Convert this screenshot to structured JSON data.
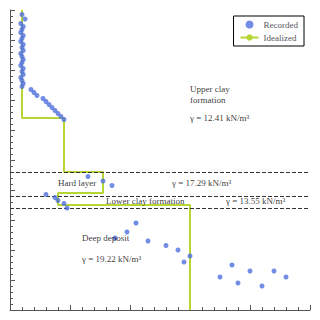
{
  "chart_data": {
    "type": "scatter",
    "xlim": [
      0,
      500
    ],
    "ylim": [
      100,
      0
    ],
    "xticks": [
      0,
      100,
      200,
      300,
      400,
      500
    ],
    "yticks": [
      0,
      10,
      20,
      30,
      40,
      50,
      60,
      70,
      80,
      90,
      100
    ],
    "tick_labels": false,
    "grid": false,
    "legend": "upper right",
    "series": [
      {
        "name": "Recorded",
        "type": "scatter",
        "marker": "circle",
        "values": [
          [
            20,
            1.5
          ],
          [
            25,
            3
          ],
          [
            18,
            4.5
          ],
          [
            22,
            5.5
          ],
          [
            20,
            6.5
          ],
          [
            18,
            7.5
          ],
          [
            22,
            8.5
          ],
          [
            20,
            9.5
          ],
          [
            18,
            10.5
          ],
          [
            22,
            11.5
          ],
          [
            20,
            12.5
          ],
          [
            22,
            13.5
          ],
          [
            18,
            14.5
          ],
          [
            20,
            15.5
          ],
          [
            22,
            16.5
          ],
          [
            20,
            17.5
          ],
          [
            18,
            18.5
          ],
          [
            22,
            19.5
          ],
          [
            20,
            20.5
          ],
          [
            22,
            21.5
          ],
          [
            18,
            22.5
          ],
          [
            20,
            23.5
          ],
          [
            22,
            24.5
          ],
          [
            20,
            25.5
          ],
          [
            35,
            26.5
          ],
          [
            40,
            27.5
          ],
          [
            45,
            28.5
          ],
          [
            55,
            29.5
          ],
          [
            60,
            30.5
          ],
          [
            65,
            31.5
          ],
          [
            70,
            32.5
          ],
          [
            75,
            33.5
          ],
          [
            80,
            34.5
          ],
          [
            85,
            35.5
          ],
          [
            90,
            36.5
          ],
          [
            130,
            55.5
          ],
          [
            155,
            57
          ],
          [
            170,
            58.5
          ],
          [
            60,
            61.5
          ],
          [
            75,
            62.5
          ],
          [
            80,
            63.5
          ],
          [
            90,
            64.5
          ],
          [
            95,
            66
          ],
          [
            210,
            71
          ],
          [
            195,
            74
          ],
          [
            175,
            76
          ],
          [
            230,
            77
          ],
          [
            260,
            78.5
          ],
          [
            280,
            80
          ],
          [
            300,
            82
          ],
          [
            290,
            84
          ],
          [
            370,
            85
          ],
          [
            400,
            87
          ],
          [
            350,
            89
          ],
          [
            380,
            91
          ],
          [
            440,
            87
          ],
          [
            460,
            89
          ],
          [
            420,
            92
          ]
        ]
      },
      {
        "name": "Idealized",
        "type": "line",
        "marker": "none",
        "values": [
          [
            20,
            0
          ],
          [
            20,
            36
          ],
          [
            90,
            36
          ],
          [
            90,
            54
          ],
          [
            155,
            54
          ],
          [
            155,
            61
          ],
          [
            80,
            61
          ],
          [
            80,
            65
          ],
          [
            300,
            65
          ],
          [
            300,
            100
          ]
        ]
      }
    ],
    "hlines": {
      "values": [
        54,
        62,
        66
      ],
      "line_style": "dashed"
    },
    "annotations": [
      {
        "text": "Upper clay\nformation",
        "x": 300,
        "y": 28
      },
      {
        "text": "γ = 12.41 kN/m³",
        "x": 300,
        "y": 36
      },
      {
        "text": "Hard layer",
        "x": 80,
        "y": 57.5
      },
      {
        "text": "γ = 17.29 kN/m³",
        "x": 270,
        "y": 57.5
      },
      {
        "text": "Lower clay formation",
        "x": 160,
        "y": 63.5
      },
      {
        "text": "γ = 13.55 kN/m³",
        "x": 360,
        "y": 63.5
      },
      {
        "text": "Deep deposit",
        "x": 120,
        "y": 76
      },
      {
        "text": "γ = 19.22 kN/m³",
        "x": 120,
        "y": 83
      }
    ]
  }
}
